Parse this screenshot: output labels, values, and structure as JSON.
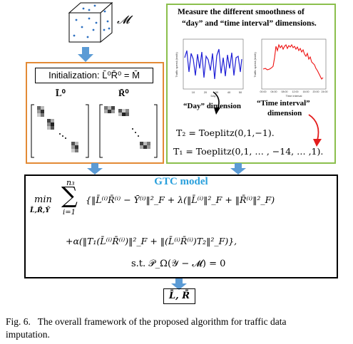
{
  "tensor": {
    "label": "𝓜"
  },
  "init": {
    "title": "Initialization: L̄⁰R̄⁰ = M̄",
    "left_label": "L̄⁰",
    "right_label": "R̄⁰"
  },
  "smooth": {
    "title_line1": "Measure the different smoothness of",
    "title_line2": "“day” and “time interval” dimensions.",
    "day_label": "“Day” dimension",
    "time_label_line1": "“Time interval”",
    "time_label_line2": "dimension",
    "t2_eq": "T₂ = Toeplitz(0,1,−1).",
    "t1_eq": "T₁ = Toeplitz(0,1, … , −14, … ,1).",
    "day_chart": {
      "ylabel": "Traffic speed (km/h)",
      "xlabel": "Day",
      "xticks": [
        "10",
        "20",
        "30",
        "40",
        "50"
      ],
      "color": "#1f1fd6"
    },
    "time_chart": {
      "ylabel": "Traffic speed (km/h)",
      "xlabel": "Time interval",
      "xticks": [
        "00:00",
        "04:00",
        "08:00",
        "12:00",
        "16:00",
        "20:00",
        "24:00"
      ],
      "color": "#ee1111"
    }
  },
  "gtc": {
    "title": "GTC model",
    "min_label": "min",
    "min_sub": "L̄,R̄,Ȳ",
    "sum_top": "n₃",
    "sum_bottom": "i=1",
    "line1_rest": "{‖L̄⁽ⁱ⁾R̄⁽ⁱ⁾ − Ȳ⁽ⁱ⁾‖²_F + λ(‖L̄⁽ⁱ⁾‖²_F + ‖R̄⁽ⁱ⁾‖²_F)",
    "line2": "+α(‖T₁(L̄⁽ⁱ⁾R̄⁽ⁱ⁾)‖²_F + ‖(L̄⁽ⁱ⁾R̄⁽ⁱ⁾)T₂‖²_F)},",
    "constraint": "s.t. 𝒫_Ω(𝒴 − 𝓜) = 0",
    "title_color": "#2aa0dc"
  },
  "output": {
    "label": "L̄, R̄"
  },
  "caption": {
    "line1": "Fig. 6.   The overall framework of the proposed algorithm for traffic data",
    "line2": "imputation."
  },
  "colors": {
    "arrow": "#5b9bd5",
    "orange": "#e38a35",
    "green": "#8bbf4d",
    "red": "#e31c1c"
  }
}
